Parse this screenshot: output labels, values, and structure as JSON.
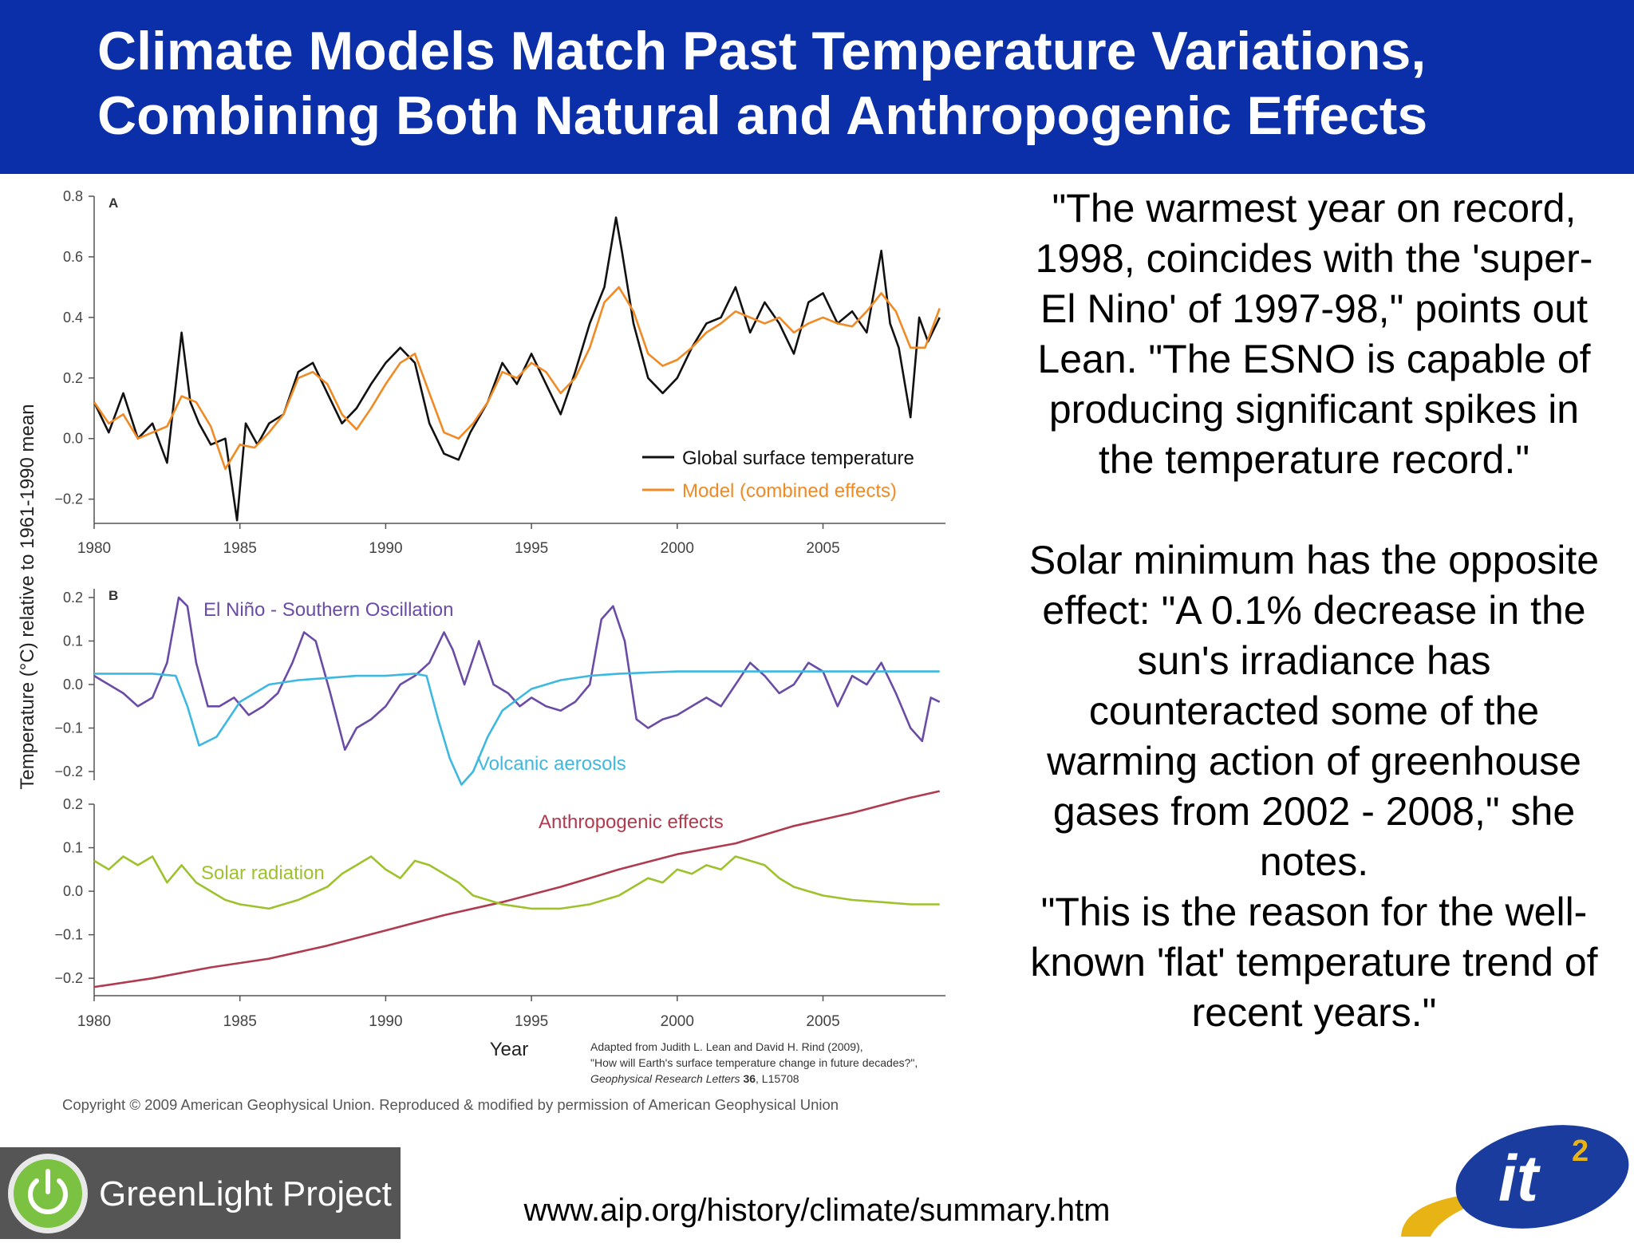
{
  "slide": {
    "title_line1": "Climate Models Match Past Temperature Variations,",
    "title_line2": "Combining Both Natural and Anthropogenic Effects",
    "quote": [
      "\"The warmest year on record,",
      "1998, coincides with the 'super-",
      "El Nino' of 1997-98,\" points out",
      "Lean. \"The ESNO is capable of",
      "producing significant spikes in",
      "the temperature record.\""
    ],
    "quote2": [
      "Solar minimum has the opposite",
      "effect: \"A 0.1% decrease in the",
      "sun's irradiance has",
      "counteracted some of the",
      "warming action of greenhouse",
      "gases from 2002 - 2008,\" she",
      "notes.",
      "\"This is the reason for the well-",
      "known 'flat' temperature trend of",
      "recent years.\""
    ],
    "url": "www.aip.org/history/climate/summary.htm",
    "logo_left_text": "GreenLight Project",
    "logo_right_text": "it",
    "logo_right_sup": "2",
    "banner_color": "#0b2fa8"
  },
  "figure": {
    "ylabel": "Temperature (°C) relative to 1961-1990 mean",
    "xlabel": "Year",
    "citation_line1": "Adapted from Judith L. Lean and David H. Rind (2009),",
    "citation_line2": "\"How will Earth's surface temperature change in future decades?\",",
    "citation_line3a": "Geophysical Research Letters ",
    "citation_line3b": "36",
    "citation_line3c": ", L15708",
    "copyright": "Copyright © 2009 American Geophysical Union. Reproduced & modified by permission of American Geophysical Union"
  },
  "chart_data": [
    {
      "type": "line",
      "panel_label": "A",
      "xlim": [
        1980,
        2009.2
      ],
      "ylim": [
        -0.28,
        0.8
      ],
      "xticks": [
        1980,
        1985,
        1990,
        1995,
        2000,
        2005
      ],
      "yticks": [
        -0.2,
        0.0,
        0.2,
        0.4,
        0.6,
        0.8
      ],
      "ytick_labels": [
        "−0.2",
        "0.0",
        "0.2",
        "0.4",
        "0.6",
        "0.8"
      ],
      "legend_position": "bottom-right",
      "series": [
        {
          "name": "Global surface temperature",
          "color": "#111111",
          "x": [
            1980,
            1980.5,
            1981,
            1981.5,
            1982,
            1982.5,
            1983,
            1983.3,
            1983.6,
            1984,
            1984.5,
            1984.9,
            1985.2,
            1985.6,
            1986,
            1986.5,
            1987,
            1987.5,
            1988,
            1988.5,
            1989,
            1989.5,
            1990,
            1990.5,
            1991,
            1991.5,
            1992,
            1992.5,
            1992.9,
            1993.5,
            1994,
            1994.5,
            1995,
            1995.5,
            1996,
            1996.5,
            1997,
            1997.5,
            1997.9,
            1998.1,
            1998.5,
            1999,
            1999.5,
            2000,
            2000.5,
            2001,
            2001.5,
            2002,
            2002.5,
            2003,
            2003.5,
            2004,
            2004.5,
            2005,
            2005.5,
            2006,
            2006.5,
            2007,
            2007.3,
            2007.6,
            2008,
            2008.3,
            2008.6,
            2009
          ],
          "y": [
            0.12,
            0.02,
            0.15,
            0.0,
            0.05,
            -0.08,
            0.35,
            0.12,
            0.05,
            -0.02,
            0.0,
            -0.27,
            0.05,
            -0.02,
            0.05,
            0.08,
            0.22,
            0.25,
            0.15,
            0.05,
            0.1,
            0.18,
            0.25,
            0.3,
            0.25,
            0.05,
            -0.05,
            -0.07,
            0.02,
            0.12,
            0.25,
            0.18,
            0.28,
            0.18,
            0.08,
            0.22,
            0.38,
            0.5,
            0.73,
            0.62,
            0.38,
            0.2,
            0.15,
            0.2,
            0.3,
            0.38,
            0.4,
            0.5,
            0.35,
            0.45,
            0.38,
            0.28,
            0.45,
            0.48,
            0.38,
            0.42,
            0.35,
            0.62,
            0.38,
            0.3,
            0.07,
            0.4,
            0.32,
            0.4
          ]
        },
        {
          "name": "Model (combined effects)",
          "color": "#f08a24",
          "x": [
            1980,
            1980.5,
            1981,
            1981.5,
            1982,
            1982.5,
            1983,
            1983.5,
            1984,
            1984.5,
            1985,
            1985.5,
            1986,
            1986.5,
            1987,
            1987.5,
            1988,
            1988.5,
            1989,
            1989.5,
            1990,
            1990.5,
            1991,
            1991.5,
            1992,
            1992.5,
            1993,
            1993.5,
            1994,
            1994.5,
            1995,
            1995.5,
            1996,
            1996.5,
            1997,
            1997.5,
            1998,
            1998.5,
            1999,
            1999.5,
            2000,
            2000.5,
            2001,
            2001.5,
            2002,
            2002.5,
            2003,
            2003.5,
            2004,
            2004.5,
            2005,
            2005.5,
            2006,
            2006.5,
            2007,
            2007.5,
            2008,
            2008.5,
            2009
          ],
          "y": [
            0.12,
            0.05,
            0.08,
            0.0,
            0.02,
            0.04,
            0.14,
            0.12,
            0.04,
            -0.1,
            -0.02,
            -0.03,
            0.02,
            0.08,
            0.2,
            0.22,
            0.18,
            0.08,
            0.03,
            0.1,
            0.18,
            0.25,
            0.28,
            0.15,
            0.02,
            0.0,
            0.05,
            0.12,
            0.22,
            0.2,
            0.25,
            0.22,
            0.15,
            0.2,
            0.3,
            0.45,
            0.5,
            0.42,
            0.28,
            0.24,
            0.26,
            0.3,
            0.35,
            0.38,
            0.42,
            0.4,
            0.38,
            0.4,
            0.35,
            0.38,
            0.4,
            0.38,
            0.37,
            0.42,
            0.48,
            0.42,
            0.3,
            0.3,
            0.43
          ]
        }
      ]
    },
    {
      "type": "line",
      "panel_label": "B",
      "xlim": [
        1980,
        2009.2
      ],
      "ylim": [
        -0.22,
        0.22
      ],
      "xticks": [
        1980,
        1985,
        1990,
        1995,
        2000,
        2005
      ],
      "yticks": [
        -0.2,
        -0.1,
        0.0,
        0.1,
        0.2
      ],
      "ytick_labels": [
        "−0.2",
        "−0.1",
        "0.0",
        "0.1",
        "0.2"
      ],
      "series": [
        {
          "name": "El Niño - Southern Oscillation",
          "color": "#6a4ba6",
          "x": [
            1980,
            1980.5,
            1981,
            1981.5,
            1982,
            1982.5,
            1982.9,
            1983.2,
            1983.5,
            1983.9,
            1984.3,
            1984.8,
            1985.3,
            1985.8,
            1986.3,
            1986.8,
            1987.2,
            1987.6,
            1988.1,
            1988.6,
            1989,
            1989.5,
            1990,
            1990.5,
            1991,
            1991.5,
            1992,
            1992.3,
            1992.7,
            1993.2,
            1993.7,
            1994.2,
            1994.6,
            1995,
            1995.5,
            1996,
            1996.5,
            1997,
            1997.4,
            1997.8,
            1998.2,
            1998.6,
            1999,
            1999.5,
            2000,
            2000.5,
            2001,
            2001.5,
            2002,
            2002.5,
            2003,
            2003.5,
            2004,
            2004.5,
            2005,
            2005.5,
            2006,
            2006.5,
            2007,
            2007.5,
            2008,
            2008.4,
            2008.7,
            2009
          ],
          "y": [
            0.02,
            0.0,
            -0.02,
            -0.05,
            -0.03,
            0.05,
            0.2,
            0.18,
            0.05,
            -0.05,
            -0.05,
            -0.03,
            -0.07,
            -0.05,
            -0.02,
            0.05,
            0.12,
            0.1,
            -0.02,
            -0.15,
            -0.1,
            -0.08,
            -0.05,
            0.0,
            0.02,
            0.05,
            0.12,
            0.08,
            0.0,
            0.1,
            0.0,
            -0.02,
            -0.05,
            -0.03,
            -0.05,
            -0.06,
            -0.04,
            0.0,
            0.15,
            0.18,
            0.1,
            -0.08,
            -0.1,
            -0.08,
            -0.07,
            -0.05,
            -0.03,
            -0.05,
            0.0,
            0.05,
            0.02,
            -0.02,
            0.0,
            0.05,
            0.03,
            -0.05,
            0.02,
            0.0,
            0.05,
            -0.02,
            -0.1,
            -0.13,
            -0.03,
            -0.04
          ]
        },
        {
          "name": "Volcanic aerosols",
          "color": "#3db8e0",
          "x": [
            1980,
            1982,
            1982.8,
            1983.2,
            1983.6,
            1984.2,
            1985,
            1986,
            1987,
            1988,
            1989,
            1990,
            1991,
            1991.4,
            1991.8,
            1992.2,
            1992.6,
            1993,
            1993.5,
            1994,
            1995,
            1996,
            1997,
            1998,
            2000,
            2002,
            2005,
            2009
          ],
          "y": [
            0.025,
            0.025,
            0.02,
            -0.05,
            -0.14,
            -0.12,
            -0.04,
            0.0,
            0.01,
            0.015,
            0.02,
            0.02,
            0.025,
            0.02,
            -0.08,
            -0.17,
            -0.23,
            -0.2,
            -0.12,
            -0.06,
            -0.01,
            0.01,
            0.02,
            0.025,
            0.03,
            0.03,
            0.03,
            0.03
          ]
        }
      ]
    },
    {
      "type": "line",
      "panel_label": "",
      "xlim": [
        1980,
        2009.2
      ],
      "ylim": [
        -0.24,
        0.2
      ],
      "xticks": [
        1980,
        1985,
        1990,
        1995,
        2000,
        2005
      ],
      "xtick_labels": [
        "1980",
        "1985",
        "1990",
        "1995",
        "2000",
        "2005"
      ],
      "yticks": [
        -0.2,
        -0.1,
        0.0,
        0.1,
        0.2
      ],
      "ytick_labels": [
        "−0.2",
        "−0.1",
        "0.0",
        "0.1",
        "0.2"
      ],
      "series": [
        {
          "name": "Anthropogenic effects",
          "color": "#b03a4e",
          "x": [
            1980,
            1982,
            1984,
            1986,
            1988,
            1990,
            1992,
            1994,
            1996,
            1998,
            2000,
            2002,
            2004,
            2006,
            2008,
            2009
          ],
          "y": [
            -0.22,
            -0.2,
            -0.175,
            -0.155,
            -0.125,
            -0.09,
            -0.055,
            -0.025,
            0.01,
            0.05,
            0.085,
            0.11,
            0.15,
            0.18,
            0.215,
            0.23
          ]
        },
        {
          "name": "Solar radiation",
          "color": "#9dc22c",
          "x": [
            1980,
            1980.5,
            1981,
            1981.5,
            1982,
            1982.5,
            1983,
            1983.5,
            1984,
            1984.5,
            1985,
            1986,
            1987,
            1988,
            1988.5,
            1989,
            1989.5,
            1990,
            1990.5,
            1991,
            1991.5,
            1992,
            1992.5,
            1993,
            1993.5,
            1994,
            1995,
            1996,
            1997,
            1998,
            1998.5,
            1999,
            1999.5,
            2000,
            2000.5,
            2001,
            2001.5,
            2002,
            2002.5,
            2003,
            2003.5,
            2004,
            2004.5,
            2005,
            2006,
            2007,
            2008,
            2009
          ],
          "y": [
            0.07,
            0.05,
            0.08,
            0.06,
            0.08,
            0.02,
            0.06,
            0.02,
            0.0,
            -0.02,
            -0.03,
            -0.04,
            -0.02,
            0.01,
            0.04,
            0.06,
            0.08,
            0.05,
            0.03,
            0.07,
            0.06,
            0.04,
            0.02,
            -0.01,
            -0.02,
            -0.03,
            -0.04,
            -0.04,
            -0.03,
            -0.01,
            0.01,
            0.03,
            0.02,
            0.05,
            0.04,
            0.06,
            0.05,
            0.08,
            0.07,
            0.06,
            0.03,
            0.01,
            0.0,
            -0.01,
            -0.02,
            -0.025,
            -0.03,
            -0.03
          ]
        }
      ]
    }
  ]
}
